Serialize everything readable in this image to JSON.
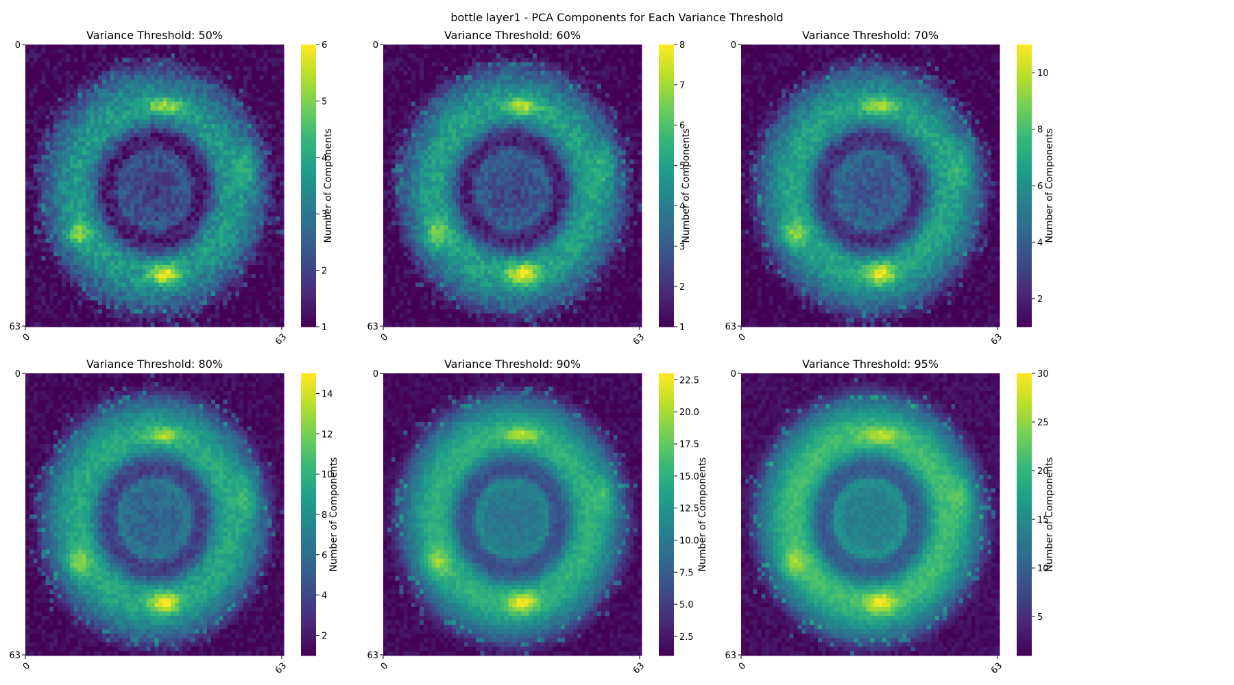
{
  "figure": {
    "suptitle": "bottle layer1 - PCA Components for Each Variance Threshold",
    "colormap": "viridis",
    "colormap_stops": [
      "#440154",
      "#482878",
      "#3e4989",
      "#31688e",
      "#26828e",
      "#1f9e89",
      "#35b779",
      "#6ece58",
      "#b5de2b",
      "#fde725"
    ]
  },
  "chart_data": [
    {
      "type": "heatmap",
      "title": "Variance Threshold: 50%",
      "grid_size": 64,
      "x_tick_labels": [
        "0",
        "63"
      ],
      "y_tick_labels": [
        "0",
        "63"
      ],
      "colorbar_label": "Number of Components",
      "value_range": [
        1,
        6
      ],
      "colorbar_ticks": [
        "1",
        "2",
        "3",
        "4",
        "5",
        "6"
      ],
      "colorbar_tick_values": [
        1,
        2,
        3,
        4,
        5,
        6
      ],
      "pattern": {
        "outer_ring_value": 3.7,
        "inner_ring_value": 1.0,
        "core_value": 2.4,
        "hotspot_value": 6.0,
        "background_value": 1.0,
        "noise": 0.45
      }
    },
    {
      "type": "heatmap",
      "title": "Variance Threshold: 60%",
      "grid_size": 64,
      "x_tick_labels": [
        "0",
        "63"
      ],
      "y_tick_labels": [
        "0",
        "63"
      ],
      "colorbar_label": "Number of Components",
      "value_range": [
        1,
        8
      ],
      "colorbar_ticks": [
        "1",
        "2",
        "3",
        "4",
        "5",
        "6",
        "7",
        "8"
      ],
      "colorbar_tick_values": [
        1,
        2,
        3,
        4,
        5,
        6,
        7,
        8
      ],
      "pattern": {
        "outer_ring_value": 5.0,
        "inner_ring_value": 1.2,
        "core_value": 3.0,
        "hotspot_value": 8.0,
        "background_value": 1.0,
        "noise": 0.55
      }
    },
    {
      "type": "heatmap",
      "title": "Variance Threshold: 70%",
      "grid_size": 64,
      "x_tick_labels": [
        "0",
        "63"
      ],
      "y_tick_labels": [
        "0",
        "63"
      ],
      "colorbar_label": "Number of Components",
      "value_range": [
        1,
        11
      ],
      "colorbar_ticks": [
        "2",
        "4",
        "6",
        "8",
        "10"
      ],
      "colorbar_tick_values": [
        2,
        4,
        6,
        8,
        10
      ],
      "pattern": {
        "outer_ring_value": 6.8,
        "inner_ring_value": 1.8,
        "core_value": 4.2,
        "hotspot_value": 11.0,
        "background_value": 1.0,
        "noise": 0.7
      }
    },
    {
      "type": "heatmap",
      "title": "Variance Threshold: 80%",
      "grid_size": 64,
      "x_tick_labels": [
        "0",
        "63"
      ],
      "y_tick_labels": [
        "0",
        "63"
      ],
      "colorbar_label": "Number of Components",
      "value_range": [
        1,
        15
      ],
      "colorbar_ticks": [
        "2",
        "4",
        "6",
        "8",
        "10",
        "12",
        "14"
      ],
      "colorbar_tick_values": [
        2,
        4,
        6,
        8,
        10,
        12,
        14
      ],
      "pattern": {
        "outer_ring_value": 9.5,
        "inner_ring_value": 3.0,
        "core_value": 6.0,
        "hotspot_value": 15.0,
        "background_value": 1.2,
        "noise": 0.8
      }
    },
    {
      "type": "heatmap",
      "title": "Variance Threshold: 90%",
      "grid_size": 64,
      "x_tick_labels": [
        "0",
        "63"
      ],
      "y_tick_labels": [
        "0",
        "63"
      ],
      "colorbar_label": "Number of Components",
      "value_range": [
        1,
        23
      ],
      "colorbar_ticks": [
        "2.5",
        "5.0",
        "7.5",
        "10.0",
        "12.5",
        "15.0",
        "17.5",
        "20.0",
        "22.5"
      ],
      "colorbar_tick_values": [
        2.5,
        5.0,
        7.5,
        10.0,
        12.5,
        15.0,
        17.5,
        20.0,
        22.5
      ],
      "pattern": {
        "outer_ring_value": 15.0,
        "inner_ring_value": 5.5,
        "core_value": 10.0,
        "hotspot_value": 23.0,
        "background_value": 1.5,
        "noise": 1.0
      }
    },
    {
      "type": "heatmap",
      "title": "Variance Threshold: 95%",
      "grid_size": 64,
      "x_tick_labels": [
        "0",
        "63"
      ],
      "y_tick_labels": [
        "0",
        "63"
      ],
      "colorbar_label": "Number of Components",
      "value_range": [
        1,
        30
      ],
      "colorbar_ticks": [
        "5",
        "10",
        "15",
        "20",
        "25",
        "30"
      ],
      "colorbar_tick_values": [
        5,
        10,
        15,
        20,
        25,
        30
      ],
      "pattern": {
        "outer_ring_value": 21.0,
        "inner_ring_value": 8.0,
        "core_value": 14.0,
        "hotspot_value": 30.0,
        "background_value": 2.0,
        "noise": 1.2
      }
    }
  ]
}
